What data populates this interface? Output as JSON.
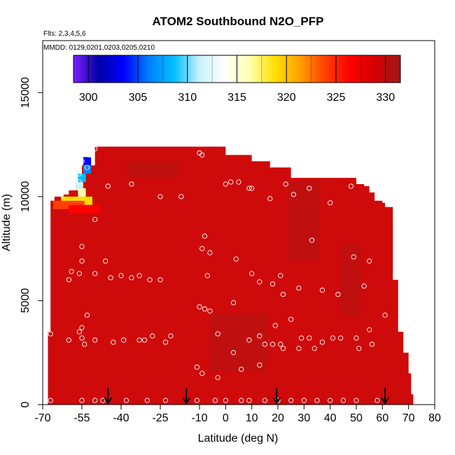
{
  "chart_data": {
    "type": "heatmap",
    "title": "ATOM2 Southbound N2O_PFP",
    "subtitle_flights": "Flts: 2,3,4,5,6",
    "subtitle_dates": "MMDD: 0129,0201,0203,0205,0210",
    "xlabel": "Latitude (deg N)",
    "ylabel": "Altitude (m)",
    "xlim": [
      -70,
      80
    ],
    "ylim": [
      0,
      17500
    ],
    "x_ticks": [
      -70,
      -55,
      -40,
      -25,
      -10,
      0,
      10,
      20,
      30,
      40,
      50,
      60,
      70,
      80
    ],
    "x_tick_labels": [
      "-70",
      "-55",
      "-40",
      "-25",
      "-10",
      "0",
      "10",
      "20",
      "30",
      "40",
      "50",
      "60",
      "70",
      "80"
    ],
    "y_ticks": [
      0,
      5000,
      10000,
      15000
    ],
    "y_tick_labels": [
      "0",
      "5000",
      "10000",
      "15000"
    ],
    "colorbar": {
      "min": 298.5,
      "max": 331.5,
      "ticks": [
        300,
        305,
        310,
        315,
        320,
        325,
        330
      ],
      "tick_labels": [
        "300",
        "305",
        "310",
        "315",
        "320",
        "325",
        "330"
      ],
      "colors": [
        "#7f1fff",
        "#0000a8",
        "#0000ff",
        "#0080ff",
        "#00bfff",
        "#c8f0ff",
        "#ffffff",
        "#ffffb0",
        "#ffe000",
        "#ffa000",
        "#ff4000",
        "#ff0000",
        "#d40000",
        "#a01818"
      ]
    },
    "field_color": "#cf0a0a",
    "field_dark_color": "#b51414",
    "coverage_top": [
      [
        -68,
        0,
        3500
      ],
      [
        -67,
        3500,
        9800
      ],
      [
        -65.5,
        9800,
        10000
      ],
      [
        -64,
        10000,
        10000
      ],
      [
        -62,
        10000,
        10100
      ],
      [
        -60,
        10100,
        10300
      ],
      [
        -57,
        10300,
        10500
      ],
      [
        -55,
        10500,
        11500
      ],
      [
        -50,
        11500,
        12400
      ],
      [
        -10,
        12400,
        12400
      ],
      [
        -9,
        12000,
        12400
      ],
      [
        0,
        11900,
        12000
      ],
      [
        10,
        11500,
        11700
      ],
      [
        17,
        11000,
        11400
      ],
      [
        25,
        10600,
        10900
      ],
      [
        50,
        10600,
        10600
      ],
      [
        53,
        10400,
        10500
      ],
      [
        55,
        10100,
        10200
      ],
      [
        57,
        9800,
        9800
      ],
      [
        60,
        9800,
        9700
      ],
      [
        61,
        9500,
        9500
      ],
      [
        64,
        7500,
        6000
      ],
      [
        66,
        4000,
        3500
      ],
      [
        68,
        3500,
        2500
      ],
      [
        70,
        2500,
        1500
      ],
      [
        71,
        900,
        500
      ]
    ],
    "anomaly_cells": [
      {
        "lat": -53,
        "alt": 11700,
        "value": 303
      },
      {
        "lat": -53,
        "alt": 11300,
        "value": 306
      },
      {
        "lat": -55,
        "alt": 10900,
        "value": 309
      },
      {
        "lat": -56,
        "alt": 10500,
        "value": 312
      },
      {
        "lat": -55,
        "alt": 10200,
        "value": 316
      },
      {
        "lat": -57,
        "alt": 9800,
        "value": 320
      },
      {
        "lat": -60,
        "alt": 9600,
        "value": 324
      },
      {
        "lat": -54,
        "alt": 9400,
        "value": 326
      }
    ],
    "sample_points": [
      [
        -50,
        12300
      ],
      [
        -52,
        12000
      ],
      [
        -55,
        11700
      ],
      [
        -53,
        11400
      ],
      [
        -56,
        11100
      ],
      [
        -56,
        10700
      ],
      [
        -45,
        10500
      ],
      [
        -36,
        10600
      ],
      [
        -25,
        10000
      ],
      [
        -17,
        10000
      ],
      [
        -9,
        12000
      ],
      [
        -10,
        12100
      ],
      [
        0,
        10600
      ],
      [
        2,
        10700
      ],
      [
        5,
        10700
      ],
      [
        9,
        10400
      ],
      [
        10,
        10400
      ],
      [
        17,
        9900
      ],
      [
        23,
        10600
      ],
      [
        26,
        10100
      ],
      [
        32,
        10400
      ],
      [
        40,
        9700
      ],
      [
        48,
        10500
      ],
      [
        -50,
        8900
      ],
      [
        -55,
        7600
      ],
      [
        -55,
        6900
      ],
      [
        -56,
        6300
      ],
      [
        -50,
        6300
      ],
      [
        -46,
        6900
      ],
      [
        -44,
        6100
      ],
      [
        -40,
        6200
      ],
      [
        -36,
        6100
      ],
      [
        -33,
        6200
      ],
      [
        -29,
        6000
      ],
      [
        -25,
        6000
      ],
      [
        -68,
        5700
      ],
      [
        -60,
        6000
      ],
      [
        -59,
        6400
      ],
      [
        -8,
        8100
      ],
      [
        -9,
        7500
      ],
      [
        -6,
        7300
      ],
      [
        4,
        7000
      ],
      [
        -7,
        6200
      ],
      [
        10,
        6300
      ],
      [
        13,
        5900
      ],
      [
        18,
        5800
      ],
      [
        21,
        6200
      ],
      [
        22,
        5300
      ],
      [
        28,
        5600
      ],
      [
        33,
        7900
      ],
      [
        37,
        5500
      ],
      [
        43,
        5300
      ],
      [
        49,
        7100
      ],
      [
        55,
        6900
      ],
      [
        53,
        5700
      ],
      [
        -67,
        3400
      ],
      [
        -60,
        3100
      ],
      [
        -56,
        3500
      ],
      [
        -55,
        3200
      ],
      [
        -54,
        2900
      ],
      [
        -50,
        3100
      ],
      [
        -43,
        3000
      ],
      [
        -39,
        3100
      ],
      [
        -33,
        3100
      ],
      [
        -31,
        3100
      ],
      [
        -28,
        3300
      ],
      [
        -21,
        3300
      ],
      [
        -10,
        4700
      ],
      [
        -8,
        4600
      ],
      [
        -6,
        4500
      ],
      [
        -3,
        3400
      ],
      [
        3,
        4900
      ],
      [
        9,
        3100
      ],
      [
        13,
        3300
      ],
      [
        15,
        2900
      ],
      [
        19,
        3800
      ],
      [
        21,
        2900
      ],
      [
        25,
        4100
      ],
      [
        29,
        3200
      ],
      [
        32,
        3200
      ],
      [
        37,
        3000
      ],
      [
        41,
        3200
      ],
      [
        44,
        3200
      ],
      [
        50,
        3200
      ],
      [
        55,
        3600
      ],
      [
        56,
        2900
      ],
      [
        61,
        4300
      ],
      [
        -53,
        4300
      ],
      [
        -55,
        3700
      ],
      [
        -23,
        3000
      ],
      [
        -11,
        1800
      ],
      [
        -9,
        1500
      ],
      [
        -3,
        1300
      ],
      [
        3,
        2500
      ],
      [
        6,
        1700
      ],
      [
        13,
        1900
      ],
      [
        18,
        2900
      ],
      [
        22,
        2700
      ],
      [
        28,
        2700
      ],
      [
        34,
        2700
      ],
      [
        51,
        2700
      ],
      [
        -67,
        200
      ],
      [
        -55,
        200
      ],
      [
        -50,
        200
      ],
      [
        -47,
        200
      ],
      [
        -38,
        200
      ],
      [
        -30,
        200
      ],
      [
        -23,
        200
      ],
      [
        -11,
        200
      ],
      [
        -4,
        200
      ],
      [
        0,
        200
      ],
      [
        6,
        200
      ],
      [
        9,
        200
      ],
      [
        15,
        200
      ],
      [
        20,
        200
      ],
      [
        25,
        200
      ],
      [
        30,
        200
      ],
      [
        35,
        200
      ],
      [
        40,
        200
      ],
      [
        45,
        200
      ],
      [
        50,
        200
      ],
      [
        58,
        200
      ],
      [
        72,
        600
      ]
    ],
    "arrows_lat": [
      -45,
      -15,
      19.5,
      61
    ]
  }
}
